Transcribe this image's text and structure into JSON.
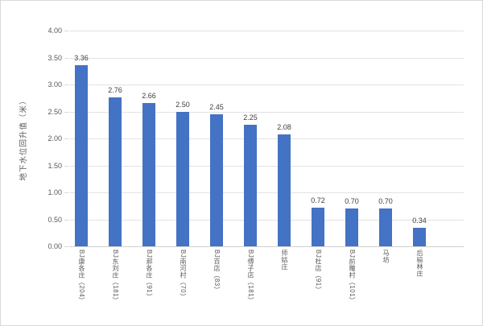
{
  "chart_data": {
    "type": "bar",
    "title": "",
    "xlabel": "",
    "ylabel": "地下水位回升值（米）",
    "categories": [
      "BJ康各庄（204）",
      "BJ东刘庄（181）",
      "BJ郝各庄（91）",
      "BJ南河村（70）",
      "BJ百店（83）",
      "BJ傅子店（181）",
      "师姑庄",
      "BJ杜店（91）",
      "BJ前疃村（101）",
      "马坊",
      "后榆林庄"
    ],
    "values": [
      3.36,
      2.76,
      2.66,
      2.5,
      2.45,
      2.25,
      2.08,
      0.72,
      0.7,
      0.7,
      0.34
    ],
    "data_labels": [
      "3.36",
      "2.76",
      "2.66",
      "2.50",
      "2.45",
      "2.25",
      "2.08",
      "0.72",
      "0.70",
      "0.70",
      "0.34"
    ],
    "ylim": [
      0,
      4
    ],
    "ytick_step": 0.5,
    "ytick_labels": [
      "0.00",
      "0.50",
      "1.00",
      "1.50",
      "2.00",
      "2.50",
      "3.00",
      "3.50",
      "4.00"
    ],
    "grid": "horizontal",
    "legend_position": "none",
    "colors": {
      "bar": "#4472c4",
      "gridline": "#e2e2e2",
      "axis_text": "#595959",
      "data_label_text": "#404040",
      "frame_border": "#d9d9d9"
    }
  }
}
